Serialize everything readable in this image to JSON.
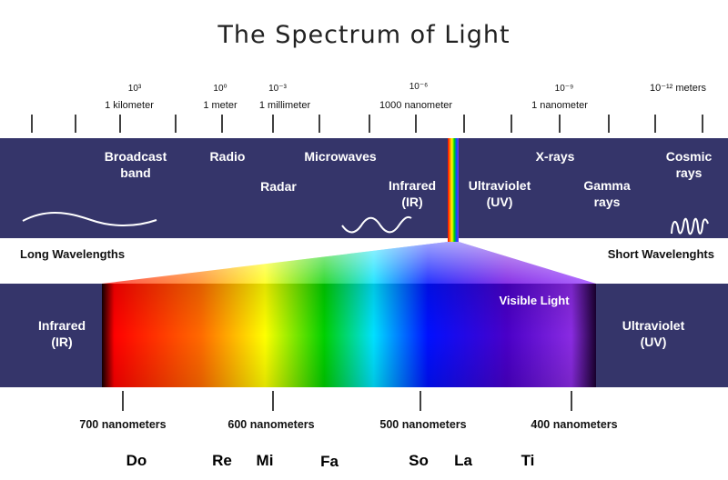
{
  "title": "The Spectrum of Light",
  "colors": {
    "band": "#35356a",
    "spectrum": [
      "#160000",
      "#ff0000",
      "#ff7a00",
      "#ffff00",
      "#00d800",
      "#00e0ff",
      "#0000ff",
      "#4b00c8",
      "#8a2be2",
      "#1a0030"
    ]
  },
  "scale": [
    {
      "exp": "10³",
      "unit": "1 kilometer"
    },
    {
      "exp": "10⁰",
      "unit": "1 meter"
    },
    {
      "exp": "10⁻³",
      "unit": "1 millimeter"
    },
    {
      "exp": "10⁻⁶",
      "unit": "1000 nanometer"
    },
    {
      "exp": "10⁻⁹",
      "unit": "1 nanometer"
    },
    {
      "exp": "10⁻¹² meters",
      "unit": ""
    }
  ],
  "bands": {
    "broadcast": [
      "Broadcast",
      "band"
    ],
    "radio": "Radio",
    "radar": "Radar",
    "microwaves": "Microwaves",
    "infrared": [
      "Infrared",
      "(IR)"
    ],
    "ultraviolet": [
      "Ultraviolet",
      "(UV)"
    ],
    "xrays": "X-rays",
    "gamma": [
      "Gamma",
      "rays"
    ],
    "cosmic": [
      "Cosmic",
      "rays"
    ]
  },
  "direction": {
    "long": "Long Wavelengths",
    "short": "Short Wavelenghts"
  },
  "visible": {
    "title": "Visible Light",
    "left": [
      "Infrared",
      "(IR)"
    ],
    "right": [
      "Ultraviolet",
      "(UV)"
    ],
    "markers": [
      "700 nanometers",
      "600 nanometers",
      "500 nanometers",
      "400 nanometers"
    ]
  },
  "notes": [
    "Do",
    "Re",
    "Mi",
    "Fa",
    "So",
    "La",
    "Ti"
  ]
}
